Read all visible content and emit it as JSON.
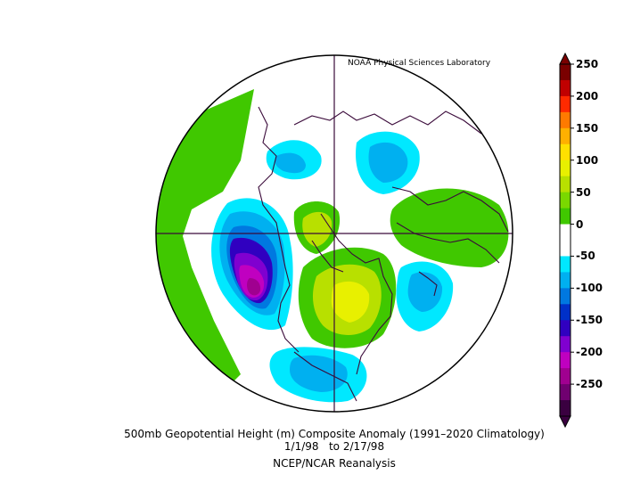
{
  "map": {
    "credit": "NOAA Physical Sciences Laboratory",
    "title": "500mb Geopotential Height (m) Composite Anomaly (1991–2020 Climatology)",
    "dates": "1/1/98   to 2/17/98",
    "source": "NCEP/NCAR Reanalysis",
    "projection": "north-polar-stereographic",
    "colorbar": {
      "labels": [
        "250",
        "200",
        "150",
        "100",
        "50",
        "0",
        "-50",
        "-100",
        "-150",
        "-200",
        "-250"
      ],
      "colors": [
        "#7a0000",
        "#c00000",
        "#ff2a00",
        "#ff7a00",
        "#ffb000",
        "#ffe000",
        "#e8f000",
        "#b8e000",
        "#7ad800",
        "#40c800",
        "#ffffff",
        "#ffffff",
        "#00e8ff",
        "#00b0f0",
        "#0078e0",
        "#0030c8",
        "#3000c0",
        "#8000d0",
        "#c000c0",
        "#a00090",
        "#700070",
        "#3a0040"
      ],
      "colors_order": "top-to-bottom"
    }
  }
}
